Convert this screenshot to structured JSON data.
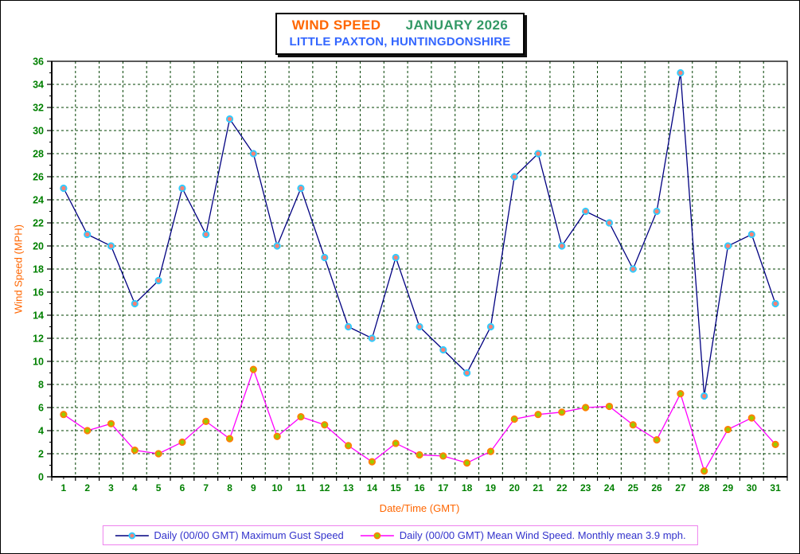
{
  "title_box": {
    "line1_part1": "WIND SPEED",
    "line1_part2": "JANUARY 2026",
    "line2": "LITTLE PAXTON, HUNTINGDONSHIRE",
    "part1_color": "#FF6600",
    "part2_color": "#339966",
    "line2_color": "#3366FF"
  },
  "chart_data": {
    "type": "line",
    "title": "WIND SPEED JANUARY 2026 - LITTLE PAXTON, HUNTINGDONSHIRE",
    "xlabel": "Date/Time (GMT)",
    "ylabel": "Wind Speed (MPH)",
    "x": [
      1,
      2,
      3,
      4,
      5,
      6,
      7,
      8,
      9,
      10,
      11,
      12,
      13,
      14,
      15,
      16,
      17,
      18,
      19,
      20,
      21,
      22,
      23,
      24,
      25,
      26,
      27,
      28,
      29,
      30,
      31
    ],
    "ylim": [
      0,
      36
    ],
    "ytick_step": 2,
    "grid": true,
    "grid_style": "dashed",
    "grid_color": "#004000",
    "tick_label_color": "#008000",
    "axis_label_color": "#FF6600",
    "axis_color": "#000000",
    "legend_position": "bottom",
    "series": [
      {
        "name": "Daily (00/00 GMT) Maximum Gust Speed",
        "line_color": "#000080",
        "marker_fill": "#FA8072",
        "marker_stroke": "#33CCFF",
        "values": [
          25,
          21,
          20,
          15,
          17,
          25,
          21,
          31,
          28,
          20,
          25,
          19,
          13,
          12,
          19,
          13,
          11,
          9,
          13,
          26,
          28,
          20,
          23,
          22,
          18,
          23,
          35,
          7,
          20,
          21,
          15
        ]
      },
      {
        "name": "Daily (00/00 GMT) Mean Wind Speed. Monthly mean 3.9 mph.",
        "line_color": "#FF00FF",
        "marker_fill": "#99CC00",
        "marker_stroke": "#FF8000",
        "values": [
          5.4,
          4.0,
          4.6,
          2.3,
          2.0,
          3.0,
          4.8,
          3.3,
          9.3,
          3.5,
          5.2,
          4.5,
          2.7,
          1.3,
          2.9,
          1.9,
          1.8,
          1.2,
          2.2,
          5.0,
          5.4,
          5.6,
          6.0,
          6.1,
          4.5,
          3.2,
          7.2,
          0.5,
          4.1,
          5.1,
          2.8
        ]
      }
    ],
    "monthly_mean_label": "3.9 mph"
  },
  "legend": {
    "border_color": "#EE82EE",
    "text_color": "#3333CC",
    "items": [
      {
        "label": "Daily (00/00 GMT) Maximum Gust Speed"
      },
      {
        "label": "Daily (00/00 GMT) Mean Wind Speed. Monthly mean 3.9 mph."
      }
    ]
  }
}
